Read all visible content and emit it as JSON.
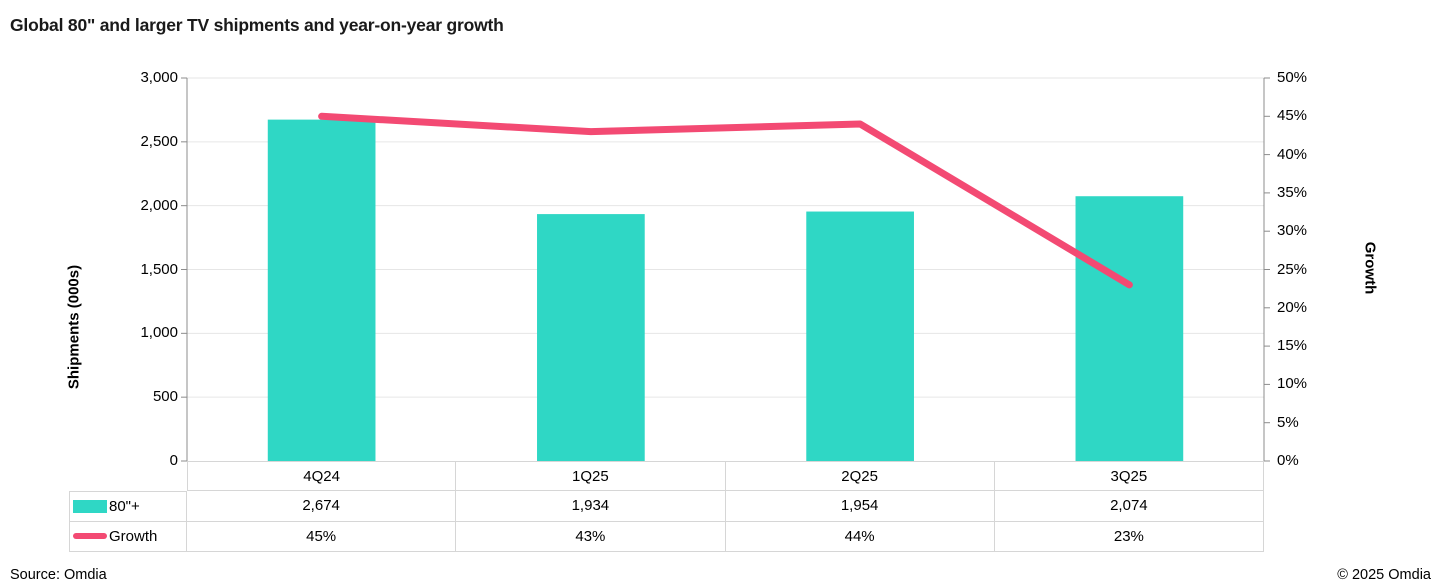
{
  "title": "Global 80\" and larger TV shipments and year-on-year growth",
  "footer": {
    "source": "Source: Omdia",
    "copyright": "© 2025 Omdia"
  },
  "colors": {
    "bar": "#2FD7C5",
    "line": "#F34A73",
    "grid": "#E6E6E6",
    "axis": "#8C8C8C",
    "table_border": "#D6D6D6",
    "title_text": "#1A1A1A",
    "text": "#000000"
  },
  "chart_data": {
    "type": "bar+line combo",
    "categories": [
      "4Q24",
      "1Q25",
      "2Q25",
      "3Q25"
    ],
    "series": [
      {
        "name": "80\"+",
        "type": "bar",
        "axis": "left",
        "values": [
          2674,
          1934,
          1954,
          2074
        ],
        "labels": [
          "2,674",
          "1,934",
          "1,954",
          "2,074"
        ]
      },
      {
        "name": "Growth",
        "type": "line",
        "axis": "right",
        "values": [
          45,
          43,
          44,
          23
        ],
        "labels": [
          "45%",
          "43%",
          "44%",
          "23%"
        ]
      }
    ],
    "left_axis": {
      "label": "Shipments (000s)",
      "min": 0,
      "max": 3000,
      "step": 500,
      "ticks": [
        "3,000",
        "2,500",
        "2,000",
        "1,500",
        "1,000",
        "500",
        "0"
      ]
    },
    "right_axis": {
      "label": "Growth",
      "min": 0,
      "max": 50,
      "step": 5,
      "ticks": [
        "50%",
        "45%",
        "40%",
        "35%",
        "30%",
        "25%",
        "20%",
        "15%",
        "10%",
        "5%",
        "0%"
      ]
    },
    "grid": "horizontal",
    "legend_position": "table-left-column"
  }
}
